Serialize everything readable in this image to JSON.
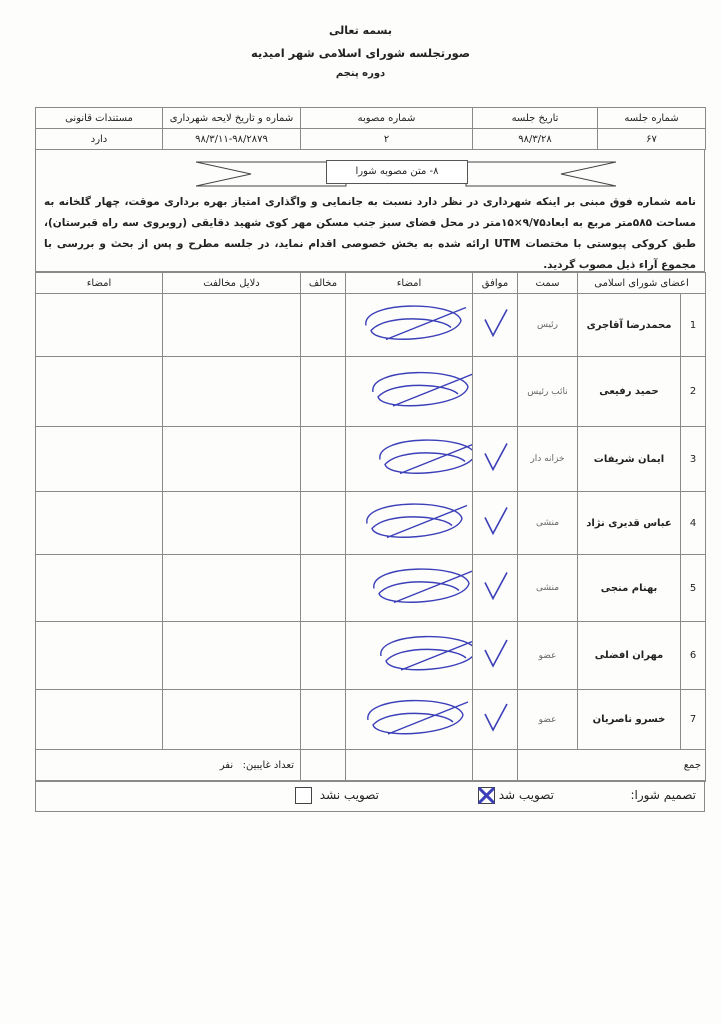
{
  "header": {
    "line1": "بسمه تعالی",
    "line2": "صورتجلسه شورای اسلامی شهر امیدیه",
    "line3": "دوره پنجم"
  },
  "info": {
    "headers": [
      "شماره جلسه",
      "تاریخ جلسه",
      "شماره مصوبه",
      "شماره و تاریخ لایحه شهرداری",
      "مستندات قانونی"
    ],
    "values": [
      "۶۷",
      "۹۸/۳/۲۸",
      "۲",
      "۹۸/۳/۱۱-۹۸/۲۸۷۹",
      "دارد"
    ]
  },
  "resolution": {
    "title": "۸- متن مصوبه شورا",
    "text": "نامه شماره فوق مبنی بر اینکه شهرداری در نظر دارد نسبت به جانمایی و واگذاری امتیاز بهره برداری موقت، چهار گلخانه به مساحت ۵۸۵متر مربع به ابعاد۹/۷۵×۱۵متر در محل فضای سبز جنب مسکن مهر کوی شهید دقایقی (روبروی سه راه قبرستان)، طبق کروکی پیوستی با مختصات UTM ارائه شده به بخش خصوصی اقدام نماید، در جلسه مطرح و پس از بحث و بررسی با مجموع آراء ذیل مصوب گردید."
  },
  "members": {
    "headers": [
      "اعضای شورای اسلامی",
      "سمت",
      "موافق",
      "امضاء",
      "مخالف",
      "دلایل مخالفت",
      "امضاء"
    ],
    "rows": [
      {
        "num": "1",
        "name": "محمدرضا آقاجری",
        "role": "رئیس",
        "agree": true
      },
      {
        "num": "2",
        "name": "حمید رفیعی",
        "role": "نائب رئیس",
        "agree": false
      },
      {
        "num": "3",
        "name": "ایمان شریفات",
        "role": "خزانه دار",
        "agree": true
      },
      {
        "num": "4",
        "name": "عباس قدیری نژاد",
        "role": "منشی",
        "agree": true
      },
      {
        "num": "5",
        "name": "بهنام منجی",
        "role": "منشی",
        "agree": true
      },
      {
        "num": "6",
        "name": "مهران افضلی",
        "role": "عضو",
        "agree": true
      },
      {
        "num": "7",
        "name": "خسرو ناصریان",
        "role": "عضو",
        "agree": true
      }
    ],
    "sum_label": "جمع",
    "absent_label": "تعداد غایبین:",
    "absent_unit": "نفر"
  },
  "decision": {
    "label": "تصمیم شورا:",
    "approved": "تصویب شد",
    "rejected": "تصویب نشد",
    "approved_checked": true,
    "rejected_checked": false
  },
  "colors": {
    "ink": "#3b3fb8",
    "border": "#8a8a8a"
  }
}
